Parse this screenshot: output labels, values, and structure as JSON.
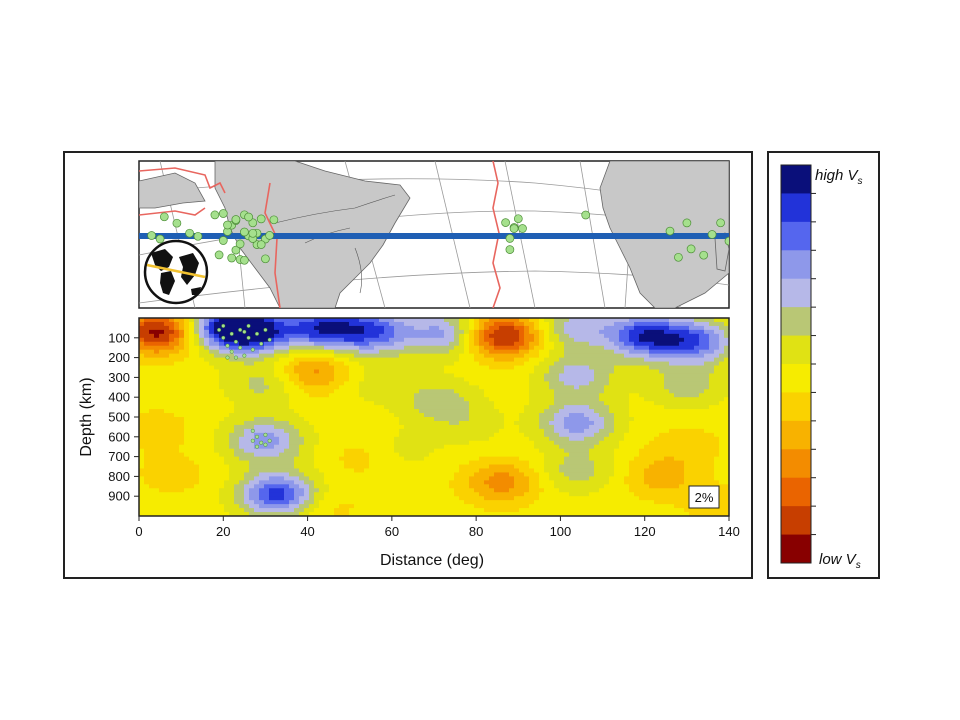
{
  "chart_data": {
    "type": "heatmap",
    "xlabel": "Distance (deg)",
    "ylabel": "Depth (km)",
    "x_ticks": [
      0,
      20,
      40,
      60,
      80,
      100,
      120,
      140
    ],
    "y_ticks": [
      100,
      200,
      300,
      400,
      500,
      600,
      700,
      800,
      900
    ],
    "xlim": [
      0,
      140
    ],
    "ylim": [
      1000,
      0
    ],
    "scale_label": "2%",
    "anomalies": [
      {
        "x": 5,
        "depth": 70,
        "level": -6
      },
      {
        "x": 20,
        "depth": 50,
        "level": 6
      },
      {
        "x": 28,
        "depth": 70,
        "level": 6
      },
      {
        "x": 44,
        "depth": 50,
        "level": 6
      },
      {
        "x": 56,
        "depth": 70,
        "level": 5
      },
      {
        "x": 86,
        "depth": 90,
        "level": -6
      },
      {
        "x": 73,
        "depth": 80,
        "level": 4
      },
      {
        "x": 104,
        "depth": 50,
        "level": 3
      },
      {
        "x": 120,
        "depth": 90,
        "level": 6
      },
      {
        "x": 132,
        "depth": 120,
        "level": 5
      },
      {
        "x": 41,
        "depth": 270,
        "level": -3
      },
      {
        "x": 30,
        "depth": 330,
        "level": 2
      },
      {
        "x": 71,
        "depth": 420,
        "level": 2
      },
      {
        "x": 104,
        "depth": 290,
        "level": 3
      },
      {
        "x": 130,
        "depth": 340,
        "level": 2
      },
      {
        "x": 56,
        "depth": 330,
        "level": 1
      },
      {
        "x": 30,
        "depth": 620,
        "level": 4
      },
      {
        "x": 33,
        "depth": 890,
        "level": 6
      },
      {
        "x": 104,
        "depth": 530,
        "level": 4
      },
      {
        "x": 104,
        "depth": 770,
        "level": 2
      },
      {
        "x": 62,
        "depth": 670,
        "level": 1
      },
      {
        "x": 86,
        "depth": 830,
        "level": -3
      },
      {
        "x": 124,
        "depth": 800,
        "level": -2
      },
      {
        "x": 54,
        "depth": 700,
        "level": -1
      },
      {
        "x": 8,
        "depth": 790,
        "level": -1
      },
      {
        "x": 4,
        "depth": 560,
        "level": -1
      },
      {
        "x": 130,
        "depth": 640,
        "level": -1
      },
      {
        "x": 44,
        "depth": 950,
        "level": -1
      },
      {
        "x": 78,
        "depth": 540,
        "level": 1
      },
      {
        "x": 138,
        "depth": 950,
        "level": -1
      }
    ],
    "section_events": [
      {
        "x": 19,
        "depth": 60
      },
      {
        "x": 20,
        "depth": 100
      },
      {
        "x": 21,
        "depth": 140
      },
      {
        "x": 22,
        "depth": 80
      },
      {
        "x": 22,
        "depth": 170
      },
      {
        "x": 23,
        "depth": 120
      },
      {
        "x": 24,
        "depth": 60
      },
      {
        "x": 24,
        "depth": 150
      },
      {
        "x": 25,
        "depth": 190
      },
      {
        "x": 26,
        "depth": 100
      },
      {
        "x": 26,
        "depth": 40
      },
      {
        "x": 27,
        "depth": 160
      },
      {
        "x": 28,
        "depth": 80
      },
      {
        "x": 29,
        "depth": 130
      },
      {
        "x": 30,
        "depth": 60
      },
      {
        "x": 31,
        "depth": 110
      },
      {
        "x": 21,
        "depth": 200
      },
      {
        "x": 23,
        "depth": 200
      },
      {
        "x": 20,
        "depth": 40
      },
      {
        "x": 25,
        "depth": 70
      },
      {
        "x": 27,
        "depth": 570
      },
      {
        "x": 28,
        "depth": 600
      },
      {
        "x": 29,
        "depth": 630
      },
      {
        "x": 30,
        "depth": 590
      },
      {
        "x": 31,
        "depth": 620
      },
      {
        "x": 28,
        "depth": 650
      },
      {
        "x": 27,
        "depth": 620
      },
      {
        "x": 30,
        "depth": 640
      }
    ]
  },
  "map": {
    "profile_line_color": "#1f5fb4",
    "event_color": "#a5e08d",
    "plate_boundary_color": "#e8665f",
    "land_color": "#c8c8c8",
    "events_lon": [
      3,
      5,
      6,
      9,
      12,
      14,
      18,
      19,
      20,
      21,
      22,
      23,
      24,
      25,
      26,
      27,
      28,
      29,
      30,
      31,
      32,
      20,
      22,
      24,
      26,
      28,
      30,
      23,
      25,
      27,
      29,
      21,
      23,
      25,
      27,
      87,
      88,
      89,
      90,
      88,
      89,
      91,
      106,
      128,
      130,
      134,
      136,
      138,
      140,
      126,
      131
    ]
  },
  "legend": {
    "high_label": "high V",
    "low_label": "low V",
    "subscript": "s",
    "colors": [
      "#0a0f7a",
      "#2233d9",
      "#5566ee",
      "#8e98ea",
      "#b6b8e8",
      "#b9c775",
      "#e0e214",
      "#f6ec00",
      "#fad200",
      "#f8b200",
      "#f38c00",
      "#ea6400",
      "#c73e00",
      "#880000"
    ]
  }
}
